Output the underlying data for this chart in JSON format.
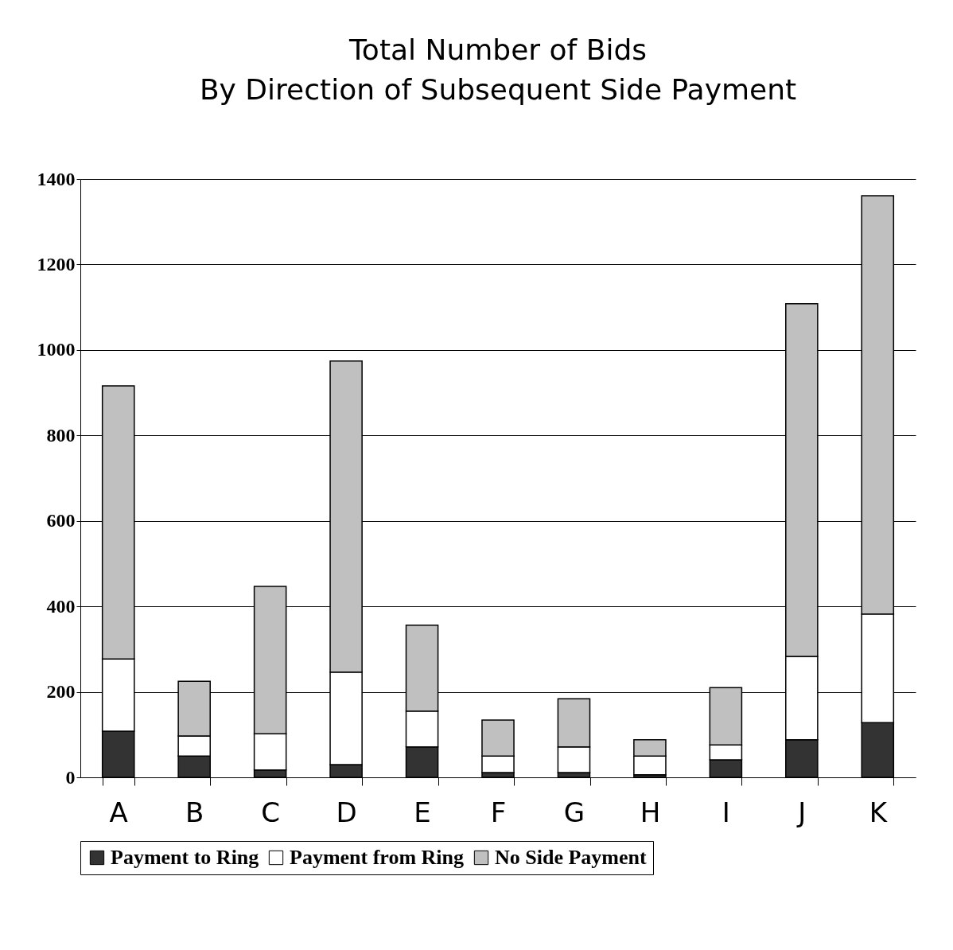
{
  "chart_data": {
    "type": "bar",
    "title": "Total Number of Bids",
    "subtitle": "By Direction of Subsequent Side Payment",
    "categories": [
      "A",
      "B",
      "C",
      "D",
      "E",
      "F",
      "G",
      "H",
      "I",
      "J",
      "K"
    ],
    "stacked": true,
    "series": [
      {
        "name": "Payment to Ring",
        "color": "#333333",
        "values": [
          108,
          50,
          17,
          30,
          71,
          11,
          11,
          6,
          41,
          88,
          128
        ]
      },
      {
        "name": "Payment from Ring",
        "color": "#ffffff",
        "values": [
          169,
          47,
          85,
          216,
          84,
          39,
          60,
          44,
          35,
          195,
          254
        ]
      },
      {
        "name": "No Side Payment",
        "color": "#c0c0c0",
        "values": [
          639,
          128,
          345,
          728,
          201,
          84,
          113,
          38,
          134,
          825,
          979
        ]
      }
    ],
    "ylim": [
      0,
      1400
    ],
    "yticks": [
      0,
      200,
      400,
      600,
      800,
      1000,
      1200,
      1400
    ],
    "grid": "y",
    "legend": "bottom"
  }
}
